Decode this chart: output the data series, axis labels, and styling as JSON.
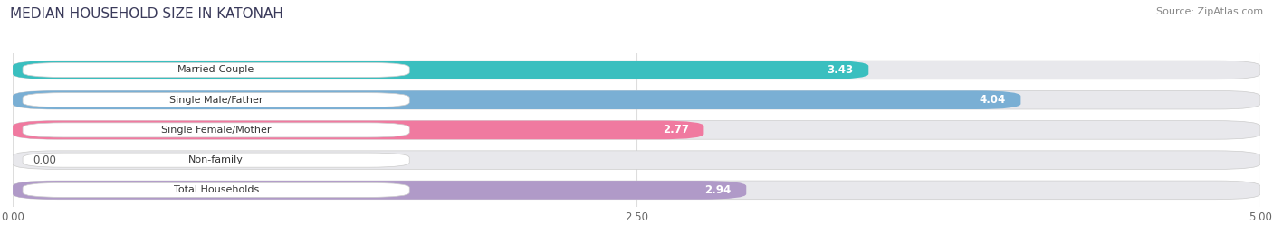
{
  "title": "MEDIAN HOUSEHOLD SIZE IN KATONAH",
  "source": "Source: ZipAtlas.com",
  "categories": [
    "Married-Couple",
    "Single Male/Father",
    "Single Female/Mother",
    "Non-family",
    "Total Households"
  ],
  "values": [
    3.43,
    4.04,
    2.77,
    0.0,
    2.94
  ],
  "bar_colors": [
    "#3abfbf",
    "#7aafd4",
    "#f07aa0",
    "#f5c89a",
    "#b09ac8"
  ],
  "bar_bg_color": "#e8e8ec",
  "xlim": [
    0,
    5.0
  ],
  "xticks": [
    0.0,
    2.5,
    5.0
  ],
  "label_fontsize": 8.0,
  "value_fontsize": 8.5,
  "title_fontsize": 11,
  "source_fontsize": 8
}
